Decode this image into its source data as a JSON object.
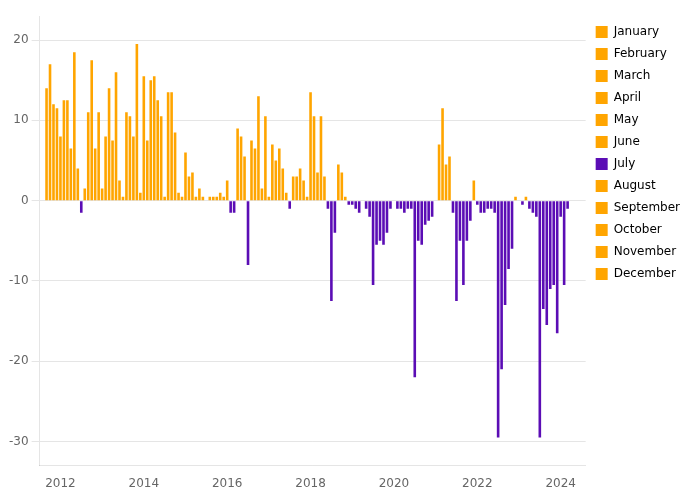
{
  "chart_data": {
    "type": "bar",
    "xlim": [
      2011.5,
      2024.6
    ],
    "xticks": [
      2012,
      2014,
      2016,
      2018,
      2020,
      2022,
      2024
    ],
    "ylim": [
      -33,
      23
    ],
    "yticks": [
      -30,
      -20,
      -10,
      0,
      10,
      20
    ],
    "grid": "y",
    "legend": "right",
    "series": [
      {
        "name": "January",
        "color": "#FFA500",
        "x": [
          2012,
          2013,
          2014,
          2015,
          2016,
          2017,
          2018,
          2019,
          2020,
          2021,
          2022,
          2023,
          2024
        ],
        "values": [
          8.0,
          1.5,
          15.5,
          6.0,
          2.5,
          0.5,
          13.5,
          -0.5,
          0.0,
          0.0,
          -0.5,
          0.0,
          -2.0
        ],
        "colors": [
          "#FFA500",
          "#FFA500",
          "#FFA500",
          "#FFA500",
          "#FFA500",
          "#FFA500",
          "#FFA500",
          "#5B0DB5",
          "#FFA500",
          "#FFA500",
          "#5B0DB5",
          "#FFA500",
          "#5B0DB5"
        ]
      },
      {
        "name": "February",
        "color": "#FFA500",
        "x": [
          2012.0833333333333,
          2013.0833333333333,
          2014.0833333333333,
          2015.0833333333333,
          2016.0833333333333,
          2017.0833333333333,
          2018.0833333333333,
          2019.0833333333333,
          2020.0833333333333,
          2021.0833333333333,
          2022.0833333333333,
          2023.0833333333333,
          2024.0833333333333
        ],
        "values": [
          12.5,
          8.0,
          7.5,
          3.0,
          -1.5,
          7.0,
          10.5,
          -1.0,
          -1.0,
          7.0,
          -1.5,
          -0.5,
          -10.5
        ],
        "colors": [
          "#FFA500",
          "#FFA500",
          "#FFA500",
          "#FFA500",
          "#5B0DB5",
          "#FFA500",
          "#FFA500",
          "#5B0DB5",
          "#5B0DB5",
          "#FFA500",
          "#5B0DB5",
          "#5B0DB5",
          "#5B0DB5"
        ]
      },
      {
        "name": "March",
        "color": "#FFA500",
        "x": [
          2012.1666666666667,
          2013.1666666666667,
          2014.1666666666667,
          2015.1666666666667,
          2016.1666666666667,
          2017.1666666666667,
          2018.1666666666667,
          2019.1666666666667,
          2020.1666666666667,
          2021.1666666666667,
          2022.1666666666667,
          2023.1666666666667,
          2024.1666666666667
        ],
        "values": [
          12.5,
          14.0,
          15.0,
          3.5,
          -1.5,
          5.0,
          3.5,
          -1.5,
          -1.0,
          11.5,
          -1.5,
          0.5,
          -1.0
        ],
        "colors": [
          "#FFA500",
          "#FFA500",
          "#FFA500",
          "#FFA500",
          "#5B0DB5",
          "#FFA500",
          "#FFA500",
          "#5B0DB5",
          "#5B0DB5",
          "#FFA500",
          "#5B0DB5",
          "#FFA500",
          "#5B0DB5"
        ]
      },
      {
        "name": "April",
        "color": "#FFA500",
        "x": [
          2012.25,
          2013.25,
          2014.25,
          2015.25,
          2016.25,
          2017.25,
          2018.25,
          2019.25,
          2020.25,
          2021.25,
          2022.25,
          2023.25
        ],
        "values": [
          6.5,
          7.5,
          15.5,
          0.5,
          9.0,
          6.5,
          10.5,
          0.0,
          -1.5,
          4.5,
          -1.0,
          -1.0
        ],
        "colors": [
          "#FFA500",
          "#FFA500",
          "#FFA500",
          "#FFA500",
          "#FFA500",
          "#FFA500",
          "#FFA500",
          "#FFA500",
          "#5B0DB5",
          "#FFA500",
          "#5B0DB5",
          "#5B0DB5"
        ]
      },
      {
        "name": "May",
        "color": "#FFA500",
        "x": [
          2012.3333333333333,
          2013.3333333333333,
          2014.3333333333333,
          2015.3333333333333,
          2016.3333333333333,
          2017.3333333333333,
          2018.3333333333333,
          2019.3333333333333,
          2020.3333333333333,
          2021.3333333333333,
          2022.3333333333333,
          2023.3333333333333
        ],
        "values": [
          18.5,
          16.0,
          12.5,
          1.5,
          8.0,
          4.0,
          3.0,
          -1.0,
          -1.0,
          5.5,
          -1.0,
          -1.5
        ],
        "colors": [
          "#FFA500",
          "#FFA500",
          "#FFA500",
          "#FFA500",
          "#FFA500",
          "#FFA500",
          "#FFA500",
          "#5B0DB5",
          "#5B0DB5",
          "#FFA500",
          "#5B0DB5",
          "#5B0DB5"
        ]
      },
      {
        "name": "June",
        "color": "#FFA500",
        "x": [
          2012.4166666666667,
          2013.4166666666667,
          2014.4166666666667,
          2015.4166666666667,
          2016.4166666666667,
          2017.4166666666667,
          2018.4166666666667,
          2019.4166666666667,
          2020.4166666666667,
          2021.4166666666667,
          2022.4166666666667,
          2023.4166666666667
        ],
        "values": [
          4.0,
          2.5,
          10.5,
          0.5,
          5.5,
          1.0,
          -1.0,
          -2.0,
          -1.0,
          -1.5,
          -1.5,
          -2.0
        ],
        "colors": [
          "#FFA500",
          "#FFA500",
          "#FFA500",
          "#FFA500",
          "#FFA500",
          "#FFA500",
          "#5B0DB5",
          "#5B0DB5",
          "#5B0DB5",
          "#5B0DB5",
          "#5B0DB5",
          "#5B0DB5"
        ]
      },
      {
        "name": "July",
        "color": "#5B0DB5",
        "x": [
          2012.5,
          2013.5,
          2014.5,
          2015.5,
          2016.5,
          2017.5,
          2018.5,
          2019.5,
          2020.5,
          2021.5,
          2022.5,
          2023.5
        ],
        "values": [
          -1.5,
          0.5,
          0.5,
          0.0,
          -8.0,
          -1.0,
          -12.5,
          -10.5,
          -22.0,
          -12.5,
          -29.5,
          -29.5
        ],
        "colors": [
          "#5B0DB5",
          "#FFA500",
          "#FFA500",
          "#FFA500",
          "#5B0DB5",
          "#5B0DB5",
          "#5B0DB5",
          "#5B0DB5",
          "#5B0DB5",
          "#5B0DB5",
          "#5B0DB5",
          "#5B0DB5"
        ]
      },
      {
        "name": "August",
        "color": "#FFA500",
        "x": [
          2012.5833333333333,
          2013.5833333333333,
          2014.5833333333333,
          2015.5833333333333,
          2016.5833333333333,
          2017.5833333333333,
          2018.5833333333333,
          2019.5833333333333,
          2020.5833333333333,
          2021.5833333333333,
          2022.5833333333333,
          2023.5833333333333
        ],
        "values": [
          1.5,
          11.0,
          13.5,
          0.5,
          7.5,
          3.0,
          -4.0,
          -5.5,
          -5.0,
          -5.0,
          -21.0,
          -13.5
        ],
        "colors": [
          "#FFA500",
          "#FFA500",
          "#FFA500",
          "#FFA500",
          "#FFA500",
          "#FFA500",
          "#5B0DB5",
          "#5B0DB5",
          "#5B0DB5",
          "#5B0DB5",
          "#5B0DB5",
          "#5B0DB5"
        ]
      },
      {
        "name": "September",
        "color": "#FFA500",
        "x": [
          2011.6666666666667,
          2012.6666666666667,
          2013.6666666666667,
          2014.6666666666667,
          2015.6666666666667,
          2016.6666666666667,
          2017.6666666666667,
          2018.6666666666667,
          2019.6666666666667,
          2020.6666666666667,
          2021.6666666666667,
          2022.6666666666667,
          2023.6666666666667
        ],
        "values": [
          14.0,
          11.0,
          10.5,
          13.5,
          0.5,
          6.5,
          3.0,
          4.5,
          -5.0,
          -5.5,
          -10.5,
          -13.0,
          -15.5
        ],
        "colors": [
          "#FFA500",
          "#FFA500",
          "#FFA500",
          "#FFA500",
          "#FFA500",
          "#FFA500",
          "#FFA500",
          "#FFA500",
          "#5B0DB5",
          "#5B0DB5",
          "#5B0DB5",
          "#5B0DB5",
          "#5B0DB5"
        ]
      },
      {
        "name": "October",
        "color": "#FFA500",
        "x": [
          2011.75,
          2012.75,
          2013.75,
          2014.75,
          2015.75,
          2016.75,
          2017.75,
          2018.75,
          2019.75,
          2020.75,
          2021.75,
          2022.75,
          2023.75
        ],
        "values": [
          17.0,
          17.5,
          8.0,
          8.5,
          0.5,
          13.0,
          4.0,
          3.5,
          -5.5,
          -3.0,
          -5.0,
          -8.5,
          -11.0
        ],
        "colors": [
          "#FFA500",
          "#FFA500",
          "#FFA500",
          "#FFA500",
          "#FFA500",
          "#FFA500",
          "#FFA500",
          "#FFA500",
          "#5B0DB5",
          "#5B0DB5",
          "#5B0DB5",
          "#5B0DB5",
          "#5B0DB5"
        ]
      },
      {
        "name": "November",
        "color": "#FFA500",
        "x": [
          2011.8333333333333,
          2012.8333333333333,
          2013.8333333333333,
          2014.8333333333333,
          2015.8333333333333,
          2016.8333333333333,
          2017.8333333333333,
          2018.8333333333333,
          2019.8333333333333,
          2020.8333333333333,
          2021.8333333333333,
          2022.8333333333333,
          2023.8333333333333
        ],
        "values": [
          12.0,
          6.5,
          19.5,
          1.0,
          1.0,
          1.5,
          2.5,
          0.5,
          -4.0,
          -2.5,
          -2.5,
          -6.0,
          -10.5
        ],
        "colors": [
          "#FFA500",
          "#FFA500",
          "#FFA500",
          "#FFA500",
          "#FFA500",
          "#FFA500",
          "#FFA500",
          "#FFA500",
          "#5B0DB5",
          "#5B0DB5",
          "#5B0DB5",
          "#5B0DB5",
          "#5B0DB5"
        ]
      },
      {
        "name": "December",
        "color": "#FFA500",
        "x": [
          2011.9166666666667,
          2012.9166666666667,
          2013.9166666666667,
          2014.9166666666667,
          2015.9166666666667,
          2016.9166666666667,
          2017.9166666666667,
          2018.9166666666667,
          2019.9166666666667,
          2020.9166666666667,
          2021.9166666666667,
          2022.9166666666667,
          2023.9166666666667
        ],
        "values": [
          11.5,
          11.0,
          1.0,
          0.5,
          0.5,
          10.5,
          0.5,
          -0.5,
          -1.0,
          -2.0,
          2.5,
          0.5,
          -16.5
        ],
        "colors": [
          "#FFA500",
          "#FFA500",
          "#FFA500",
          "#FFA500",
          "#FFA500",
          "#FFA500",
          "#FFA500",
          "#5B0DB5",
          "#5B0DB5",
          "#5B0DB5",
          "#FFA500",
          "#FFA500",
          "#5B0DB5"
        ]
      }
    ]
  }
}
